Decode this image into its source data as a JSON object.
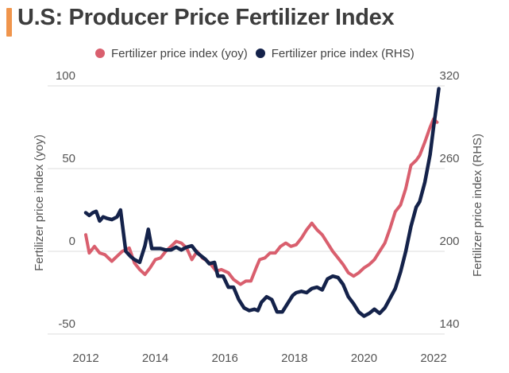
{
  "title": "U.S: Producer Price Fertilizer Index",
  "colors": {
    "accent": "#F0954C",
    "yoy": "#D95F6E",
    "rhs": "#14224A",
    "grid": "#dddddd"
  },
  "chart_data": {
    "type": "line",
    "legend_position": "top",
    "grid": true,
    "ylabel_left": "Fertilizer price index (yoy)",
    "ylabel_right": "Fertilizer price index (RHS)",
    "xlim": [
      2012,
      2022
    ],
    "ylim_left": [
      -50,
      100
    ],
    "ylim_right": [
      140,
      320
    ],
    "x_ticks": [
      "2012",
      "2014",
      "2016",
      "2018",
      "2020",
      "2022"
    ],
    "y_ticks_left": [
      "-50",
      "0",
      "50",
      "100"
    ],
    "y_ticks_right": [
      "140",
      "200",
      "260",
      "320"
    ],
    "series": [
      {
        "name": "Fertilizer price index (yoy)",
        "axis": "left",
        "x": [
          2012.0,
          2012.1,
          2012.25,
          2012.4,
          2012.55,
          2012.75,
          2012.9,
          2013.05,
          2013.25,
          2013.4,
          2013.55,
          2013.7,
          2013.85,
          2014.0,
          2014.15,
          2014.3,
          2014.45,
          2014.6,
          2014.75,
          2014.9,
          2015.05,
          2015.2,
          2015.35,
          2015.5,
          2015.6,
          2015.75,
          2015.9,
          2016.1,
          2016.25,
          2016.45,
          2016.6,
          2016.75,
          2016.9,
          2017.0,
          2017.15,
          2017.3,
          2017.45,
          2017.6,
          2017.75,
          2017.9,
          2018.05,
          2018.2,
          2018.35,
          2018.5,
          2018.65,
          2018.8,
          2018.95,
          2019.1,
          2019.25,
          2019.4,
          2019.55,
          2019.7,
          2019.85,
          2020.0,
          2020.15,
          2020.3,
          2020.45,
          2020.6,
          2020.75,
          2020.9,
          2021.05,
          2021.2,
          2021.35,
          2021.5,
          2021.6,
          2021.75,
          2021.9,
          2022.0,
          2022.1
        ],
        "values": [
          10,
          -1,
          3,
          -1,
          -2,
          -6,
          -3,
          0,
          2,
          -7,
          -11,
          -14,
          -10,
          -5,
          -4,
          0,
          3,
          6,
          5,
          2,
          -5,
          0,
          -4,
          -6,
          -8,
          -12,
          -11,
          -13,
          -17,
          -20,
          -18,
          -18,
          -10,
          -5,
          -4,
          -1,
          -1,
          3,
          5,
          3,
          4,
          8,
          13,
          17,
          13,
          10,
          5,
          0,
          -4,
          -8,
          -13,
          -15,
          -13,
          -10,
          -8,
          -5,
          0,
          5,
          14,
          24,
          28,
          38,
          52,
          55,
          58,
          66,
          75,
          80,
          78
        ]
      },
      {
        "name": "Fertilizer price index (RHS)",
        "axis": "right",
        "x": [
          2012.0,
          2012.1,
          2012.2,
          2012.3,
          2012.4,
          2012.5,
          2012.6,
          2012.75,
          2012.9,
          2013.0,
          2013.15,
          2013.3,
          2013.4,
          2013.55,
          2013.7,
          2013.8,
          2013.9,
          2014.05,
          2014.15,
          2014.3,
          2014.45,
          2014.6,
          2014.75,
          2014.9,
          2015.05,
          2015.2,
          2015.35,
          2015.45,
          2015.55,
          2015.7,
          2015.8,
          2015.95,
          2016.1,
          2016.25,
          2016.4,
          2016.55,
          2016.7,
          2016.85,
          2016.95,
          2017.05,
          2017.2,
          2017.35,
          2017.5,
          2017.65,
          2017.8,
          2017.95,
          2018.05,
          2018.2,
          2018.35,
          2018.5,
          2018.65,
          2018.8,
          2018.95,
          2019.1,
          2019.25,
          2019.4,
          2019.55,
          2019.7,
          2019.85,
          2020.0,
          2020.15,
          2020.3,
          2020.45,
          2020.6,
          2020.75,
          2020.9,
          2021.05,
          2021.2,
          2021.35,
          2021.5,
          2021.6,
          2021.75,
          2021.9,
          2022.0,
          2022.15
        ],
        "values": [
          228,
          226,
          228,
          229,
          222,
          225,
          224,
          223,
          225,
          230,
          200,
          196,
          194,
          192,
          204,
          216,
          202,
          202,
          202,
          201,
          201,
          203,
          201,
          203,
          204,
          199,
          196,
          194,
          191,
          192,
          182,
          182,
          174,
          174,
          165,
          159,
          157,
          158,
          157,
          163,
          167,
          165,
          156,
          156,
          162,
          168,
          170,
          171,
          170,
          173,
          174,
          172,
          180,
          182,
          181,
          176,
          167,
          162,
          156,
          153,
          155,
          158,
          155,
          159,
          166,
          173,
          185,
          200,
          218,
          232,
          236,
          250,
          270,
          290,
          318
        ]
      }
    ]
  }
}
